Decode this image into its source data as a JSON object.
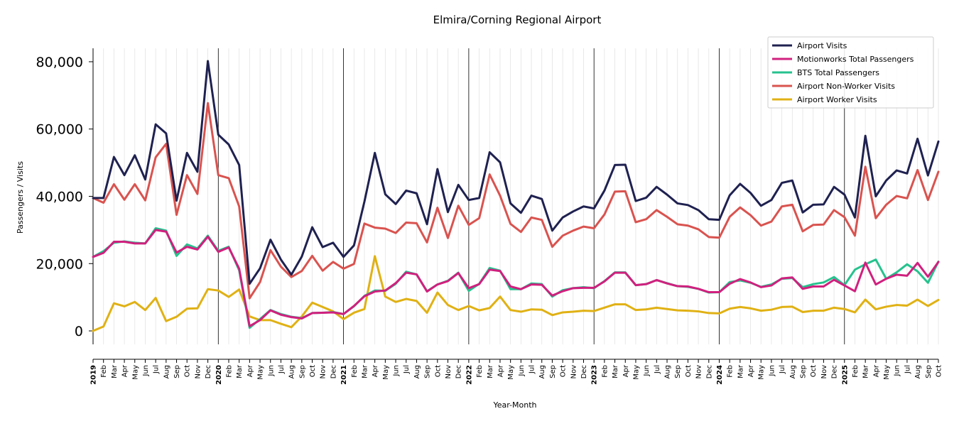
{
  "chart_data": {
    "type": "line",
    "title": "Elmira/Corning Regional Airport",
    "xlabel": "Year-Month",
    "ylabel": "Passengers / Visits",
    "ylim": [
      -4000,
      84000
    ],
    "yticks": [
      0,
      20000,
      40000,
      60000,
      80000
    ],
    "ytick_labels": [
      "0",
      "20,000",
      "40,000",
      "60,000",
      "80,000"
    ],
    "grid": "vertical",
    "legend_position": "top-right",
    "categories": [
      "2019",
      "Feb",
      "Mar",
      "Apr",
      "May",
      "Jun",
      "Jul",
      "Aug",
      "Sep",
      "Oct",
      "Nov",
      "Dec",
      "2020",
      "Feb",
      "Mar",
      "Apr",
      "May",
      "Jun",
      "Jul",
      "Aug",
      "Sep",
      "Oct",
      "Nov",
      "Dec",
      "2021",
      "Feb",
      "Mar",
      "Apr",
      "May",
      "Jun",
      "Jul",
      "Aug",
      "Sep",
      "Oct",
      "Nov",
      "Dec",
      "2022",
      "Feb",
      "Mar",
      "Apr",
      "May",
      "Jun",
      "Jul",
      "Aug",
      "Sep",
      "Oct",
      "Nov",
      "Dec",
      "2023",
      "Feb",
      "Mar",
      "Apr",
      "May",
      "Jun",
      "Jul",
      "Aug",
      "Sep",
      "Oct",
      "Nov",
      "Dec",
      "2024",
      "Feb",
      "Mar",
      "Apr",
      "May",
      "Jun",
      "Jul",
      "Aug",
      "Sep",
      "Oct",
      "Nov",
      "Dec",
      "2025",
      "Feb",
      "Mar",
      "Apr",
      "May",
      "Jun",
      "Jul",
      "Aug",
      "Sep",
      "Oct"
    ],
    "series": [
      {
        "name": "Airport Visits",
        "color": "#1f2150",
        "values": [
          39500,
          39500,
          51700,
          46300,
          52200,
          45000,
          61400,
          58700,
          38700,
          52900,
          47300,
          80200,
          58300,
          55400,
          49300,
          14000,
          18600,
          27100,
          21200,
          16700,
          22100,
          30800,
          24900,
          26200,
          22000,
          25400,
          38400,
          52900,
          40600,
          37700,
          41700,
          40900,
          31700,
          48100,
          35300,
          43400,
          38900,
          39500,
          53100,
          50100,
          37900,
          35100,
          40200,
          39200,
          29800,
          33700,
          35500,
          37000,
          36400,
          41700,
          49300,
          49400,
          38600,
          39600,
          42800,
          40500,
          37900,
          37400,
          35900,
          33200,
          33000,
          40300,
          43700,
          41000,
          37200,
          38900,
          44000,
          44700,
          35200,
          37500,
          37600,
          42800,
          40500,
          33700,
          58000,
          40000,
          44700,
          47700,
          46800,
          57100,
          46200,
          56300
        ]
      },
      {
        "name": "Motionworks Total Passengers",
        "color": "#d0207e",
        "values": [
          22000,
          23200,
          26500,
          26500,
          26000,
          26000,
          30000,
          29500,
          23300,
          25000,
          24200,
          28000,
          23500,
          24800,
          18500,
          1400,
          3200,
          6100,
          4800,
          4100,
          3700,
          5300,
          5400,
          5500,
          5000,
          7400,
          10300,
          11700,
          12000,
          14200,
          17300,
          16800,
          11700,
          13800,
          14800,
          17200,
          12700,
          13900,
          18200,
          17800,
          13200,
          12400,
          13800,
          13700,
          10500,
          11800,
          12700,
          12800,
          12800,
          14700,
          17300,
          17300,
          13600,
          13900,
          15100,
          14100,
          13300,
          13200,
          12500,
          11500,
          11500,
          14000,
          15400,
          14400,
          13000,
          13500,
          15600,
          15900,
          12500,
          13200,
          13200,
          15200,
          13500,
          11800,
          20300,
          13800,
          15500,
          16700,
          16400,
          20200,
          16100,
          20500
        ]
      },
      {
        "name": "BTS Total Passengers",
        "color": "#26c28e",
        "values": [
          22000,
          23700,
          26200,
          26600,
          26200,
          26000,
          30500,
          29800,
          22300,
          25700,
          24500,
          28300,
          23800,
          25000,
          18000,
          900,
          3500,
          6200,
          5000,
          4200,
          3800,
          5300,
          5400,
          5600,
          5000,
          7300,
          10400,
          12000,
          11900,
          14000,
          17600,
          16800,
          11800,
          13800,
          14900,
          17300,
          11900,
          14000,
          18700,
          17900,
          12400,
          12400,
          14100,
          13900,
          10200,
          12100,
          12700,
          13000,
          12700,
          14800,
          17400,
          17400,
          13600,
          13900,
          15100,
          14200,
          13300,
          13100,
          12500,
          11400,
          11500,
          14500,
          15000,
          14300,
          13100,
          13800,
          15500,
          15700,
          13000,
          13900,
          14400,
          16000,
          13600,
          18200,
          19800,
          21200,
          15500,
          17400,
          19800,
          17700,
          14300,
          20600
        ]
      },
      {
        "name": "Airport Non-Worker Visits",
        "color": "#d9534f",
        "values": [
          39500,
          38100,
          43600,
          39000,
          43600,
          38800,
          51600,
          55600,
          34500,
          46300,
          40700,
          67700,
          46300,
          45400,
          37000,
          9700,
          14500,
          24000,
          19100,
          16000,
          17800,
          22300,
          17900,
          20500,
          18500,
          19900,
          31900,
          30700,
          30400,
          29100,
          32200,
          32000,
          26300,
          36600,
          27600,
          37200,
          31500,
          33500,
          46500,
          40200,
          31800,
          29400,
          33700,
          33000,
          25000,
          28300,
          29800,
          31000,
          30500,
          34600,
          41400,
          41500,
          32300,
          33200,
          35900,
          33900,
          31700,
          31300,
          30200,
          27900,
          27700,
          33900,
          36700,
          34400,
          31300,
          32500,
          37000,
          37500,
          29600,
          31500,
          31600,
          35900,
          33800,
          28300,
          48800,
          33500,
          37500,
          40100,
          39400,
          47800,
          38900,
          47300
        ]
      },
      {
        "name": "Airport Worker Visits",
        "color": "#e0b114",
        "values": [
          0,
          1300,
          8200,
          7300,
          8600,
          6200,
          9800,
          2900,
          4200,
          6600,
          6700,
          12400,
          12000,
          10100,
          12300,
          4300,
          3200,
          3200,
          2100,
          1100,
          4300,
          8400,
          7100,
          5800,
          3500,
          5400,
          6500,
          22200,
          10200,
          8600,
          9500,
          8900,
          5400,
          11400,
          7700,
          6200,
          7400,
          6100,
          6800,
          10200,
          6200,
          5700,
          6400,
          6300,
          4700,
          5500,
          5700,
          6000,
          5900,
          6900,
          7900,
          7900,
          6200,
          6400,
          6900,
          6500,
          6100,
          6000,
          5800,
          5300,
          5200,
          6600,
          7100,
          6700,
          6000,
          6300,
          7100,
          7200,
          5600,
          6000,
          6000,
          6900,
          6500,
          5500,
          9300,
          6400,
          7200,
          7700,
          7500,
          9300,
          7400,
          9200
        ]
      }
    ]
  }
}
